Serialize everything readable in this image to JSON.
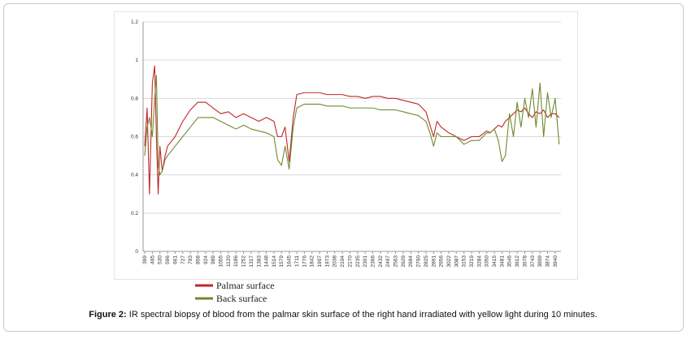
{
  "chart_data": {
    "type": "line",
    "x": [
      399,
      420,
      440,
      465,
      485,
      500,
      515,
      530,
      550,
      575,
      596,
      661,
      727,
      793,
      858,
      924,
      989,
      1055,
      1120,
      1186,
      1252,
      1317,
      1383,
      1448,
      1514,
      1545,
      1579,
      1610,
      1645,
      1680,
      1711,
      1776,
      1842,
      1907,
      1973,
      2038,
      2104,
      2170,
      2235,
      2301,
      2366,
      2432,
      2497,
      2563,
      2629,
      2694,
      2760,
      2825,
      2860,
      2891,
      2920,
      2956,
      3022,
      3087,
      3153,
      3219,
      3284,
      3350,
      3380,
      3415,
      3450,
      3481,
      3510,
      3546,
      3580,
      3612,
      3645,
      3678,
      3710,
      3743,
      3775,
      3809,
      3840,
      3874,
      3905,
      3940,
      3974
    ],
    "series": [
      {
        "name": "Palmar surface",
        "color": "#c0262a",
        "values": [
          0.55,
          0.75,
          0.3,
          0.88,
          0.97,
          0.6,
          0.3,
          0.55,
          0.42,
          0.5,
          0.55,
          0.6,
          0.68,
          0.74,
          0.78,
          0.78,
          0.75,
          0.72,
          0.73,
          0.7,
          0.72,
          0.7,
          0.68,
          0.7,
          0.68,
          0.6,
          0.6,
          0.65,
          0.47,
          0.7,
          0.82,
          0.83,
          0.83,
          0.83,
          0.82,
          0.82,
          0.82,
          0.81,
          0.81,
          0.8,
          0.81,
          0.81,
          0.8,
          0.8,
          0.79,
          0.78,
          0.77,
          0.73,
          0.66,
          0.6,
          0.68,
          0.65,
          0.62,
          0.6,
          0.58,
          0.6,
          0.6,
          0.63,
          0.62,
          0.64,
          0.66,
          0.65,
          0.68,
          0.7,
          0.72,
          0.74,
          0.73,
          0.75,
          0.72,
          0.7,
          0.73,
          0.72,
          0.74,
          0.7,
          0.72,
          0.72,
          0.7
        ]
      },
      {
        "name": "Back surface",
        "color": "#6f8a2e",
        "values": [
          0.5,
          0.65,
          0.7,
          0.6,
          0.8,
          0.92,
          0.45,
          0.4,
          0.42,
          0.48,
          0.5,
          0.55,
          0.6,
          0.65,
          0.7,
          0.7,
          0.7,
          0.68,
          0.66,
          0.64,
          0.66,
          0.64,
          0.63,
          0.62,
          0.6,
          0.48,
          0.45,
          0.55,
          0.43,
          0.65,
          0.75,
          0.77,
          0.77,
          0.77,
          0.76,
          0.76,
          0.76,
          0.75,
          0.75,
          0.75,
          0.75,
          0.74,
          0.74,
          0.74,
          0.73,
          0.72,
          0.71,
          0.68,
          0.62,
          0.55,
          0.62,
          0.6,
          0.6,
          0.6,
          0.56,
          0.58,
          0.58,
          0.62,
          0.62,
          0.64,
          0.58,
          0.47,
          0.5,
          0.72,
          0.6,
          0.78,
          0.65,
          0.8,
          0.7,
          0.85,
          0.65,
          0.88,
          0.6,
          0.83,
          0.7,
          0.8,
          0.56
        ]
      }
    ],
    "xlim": [
      385,
      3990
    ],
    "xticks": [
      399,
      465,
      530,
      596,
      661,
      727,
      793,
      858,
      924,
      989,
      1055,
      1120,
      1186,
      1252,
      1317,
      1383,
      1448,
      1514,
      1579,
      1645,
      1711,
      1776,
      1842,
      1907,
      1973,
      2038,
      2104,
      2170,
      2235,
      2301,
      2366,
      2432,
      2497,
      2563,
      2629,
      2694,
      2760,
      2825,
      2891,
      2956,
      3022,
      3087,
      3153,
      3219,
      3284,
      3350,
      3415,
      3481,
      3546,
      3612,
      3678,
      3743,
      3809,
      3874,
      3940
    ],
    "ylim": [
      0,
      1.2
    ],
    "yticks": [
      0,
      0.2,
      0.4,
      0.6,
      0.8,
      1,
      1.2
    ],
    "grid": true,
    "caption_label": "Figure 2:",
    "caption_text": "IR spectral biopsy of blood from the palmar skin surface of the right hand irradiated with yellow light during 10 minutes."
  }
}
